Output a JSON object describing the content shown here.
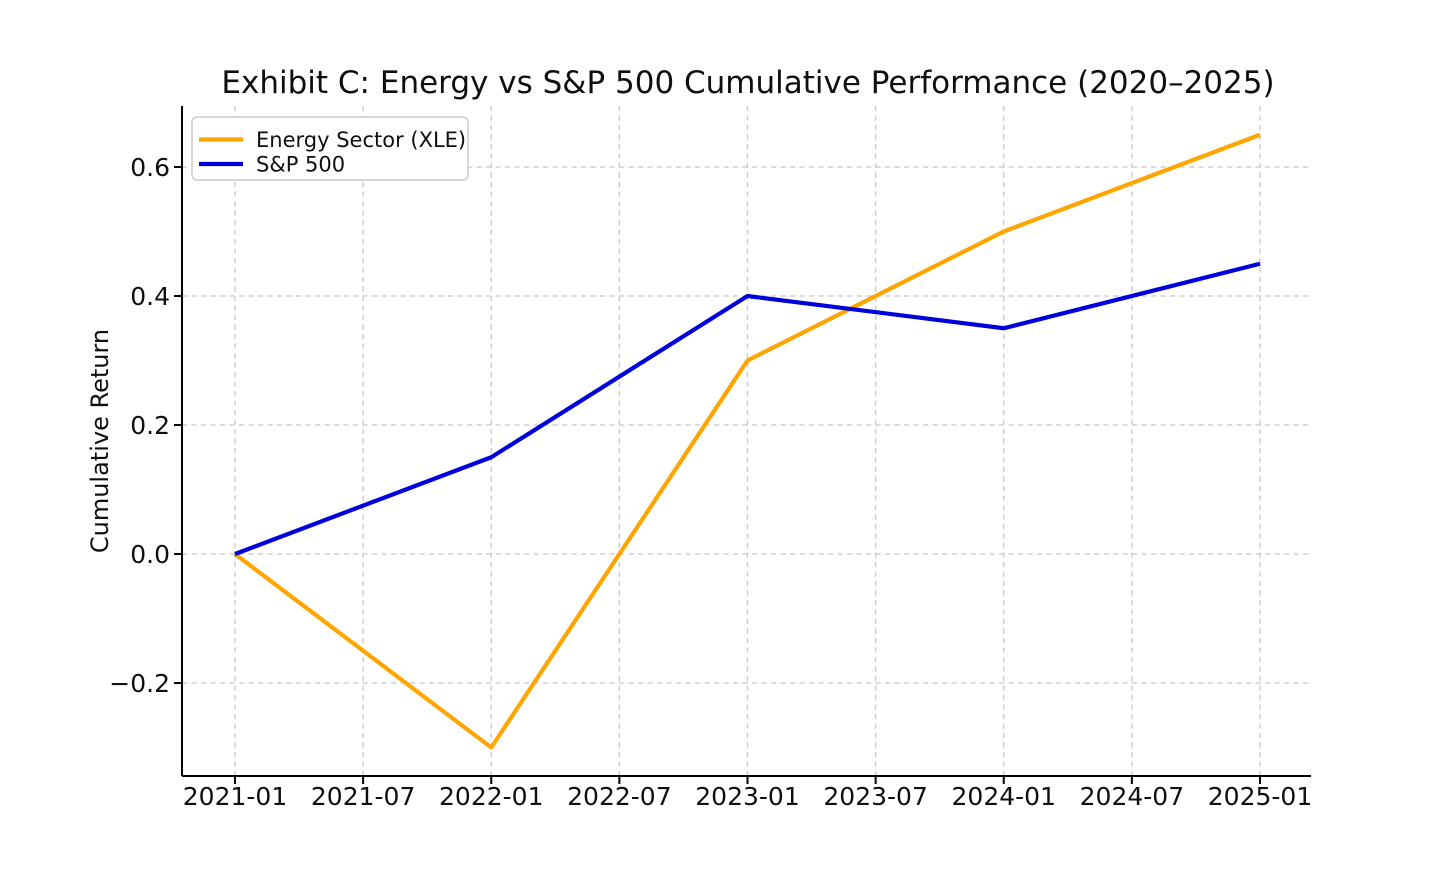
{
  "figure": {
    "background": "#ffffff"
  },
  "chart_data": {
    "type": "line",
    "title": "Exhibit C: Energy vs S&P 500 Cumulative Performance (2020–2025)",
    "xlabel": "",
    "ylabel": "Cumulative Return",
    "x": [
      "2021-01",
      "2022-01",
      "2023-01",
      "2024-01",
      "2025-01"
    ],
    "series": [
      {
        "name": "Energy Sector (XLE)",
        "color": "#FFA500",
        "values": [
          0.0,
          -0.3,
          0.3,
          0.5,
          0.65
        ]
      },
      {
        "name": "S&P 500",
        "color": "#0000DC",
        "values": [
          0.0,
          0.15,
          0.4,
          0.35,
          0.45
        ]
      }
    ],
    "x_tick_labels": [
      "2021-01",
      "2021-07",
      "2022-01",
      "2022-07",
      "2023-01",
      "2023-07",
      "2024-01",
      "2024-07",
      "2025-01"
    ],
    "y_ticks": [
      {
        "value": -0.2,
        "label": "−0.2"
      },
      {
        "value": 0.0,
        "label": "0.0"
      },
      {
        "value": 0.2,
        "label": "0.2"
      },
      {
        "value": 0.4,
        "label": "0.4"
      },
      {
        "value": 0.6,
        "label": "0.6"
      }
    ],
    "ylim": [
      -0.344,
      0.695
    ],
    "grid": true,
    "legend_position": "upper left",
    "legend_entries": [
      "Energy Sector (XLE)",
      "S&P 500"
    ]
  },
  "style": {
    "grid_color": "#c8c8c8",
    "spine_color": "#000000",
    "tick_color": "#000000",
    "text_color": "#0f0f0f",
    "legend_border_color": "#cccccc",
    "legend_background": "#ffffff"
  }
}
